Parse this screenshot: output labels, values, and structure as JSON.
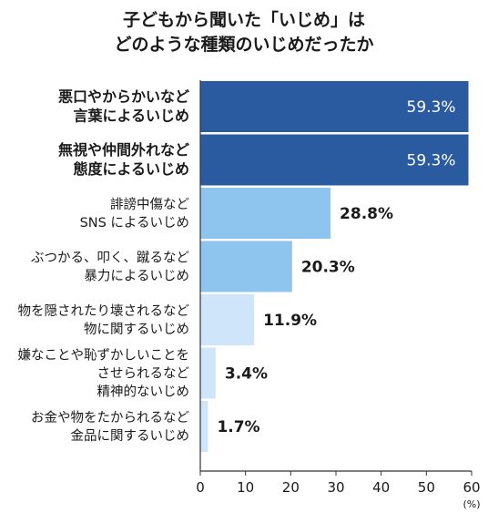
{
  "chart_data": {
    "type": "bar",
    "orientation": "horizontal",
    "title": [
      "子どもから聞いた「いじめ」は",
      "どのような種類のいじめだったか"
    ],
    "categories": [
      [
        "悪口やからかいなど",
        "言葉によるいじめ"
      ],
      [
        "無視や仲間外れなど",
        "態度によるいじめ"
      ],
      [
        "誹謗中傷など",
        "SNS によるいじめ"
      ],
      [
        "ぶつかる、叩く、蹴るなど",
        "暴力によるいじめ"
      ],
      [
        "物を隠されたり壊されるなど",
        "物に関するいじめ"
      ],
      [
        "嫌なことや恥ずかしいことを",
        "させられるなど",
        "精神的ないじめ"
      ],
      [
        "お金や物をたかられるなど",
        "金品に関するいじめ"
      ]
    ],
    "values": [
      59.3,
      59.3,
      28.8,
      20.3,
      11.9,
      3.4,
      1.7
    ],
    "value_labels": [
      "59.3%",
      "59.3%",
      "28.8%",
      "20.3%",
      "11.9%",
      "3.4%",
      "1.7%"
    ],
    "bar_colors": [
      "#2a5aa0",
      "#2a5aa0",
      "#8dc5ee",
      "#8dc5ee",
      "#cfe6fa",
      "#cfe6fa",
      "#cfe6fa"
    ],
    "xlim": [
      0,
      60
    ],
    "xticks": [
      0,
      10,
      20,
      30,
      40,
      50,
      60
    ],
    "xunit": "(%)",
    "grid": false
  }
}
